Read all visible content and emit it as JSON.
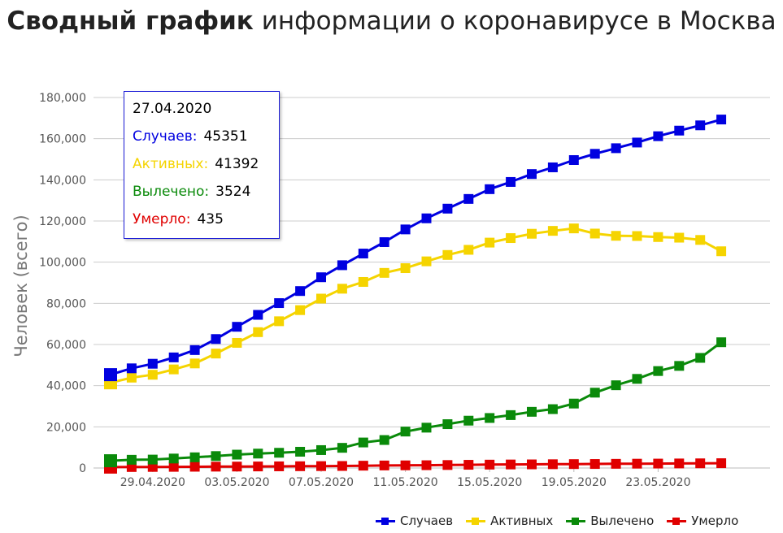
{
  "title": {
    "bold": "Сводный график",
    "rest": "информации о коронавирусе в Москва"
  },
  "chart_data": {
    "type": "line",
    "ylabel": "Человек (всего)",
    "xlabel": "",
    "ylim": [
      0,
      180000
    ],
    "y_ticks": [
      "0",
      "20,000",
      "40,000",
      "60,000",
      "80,000",
      "100,000",
      "120,000",
      "140,000",
      "160,000",
      "180,000"
    ],
    "x": [
      "27.04.2020",
      "28.04.2020",
      "29.04.2020",
      "30.04.2020",
      "01.05.2020",
      "02.05.2020",
      "03.05.2020",
      "04.05.2020",
      "05.05.2020",
      "06.05.2020",
      "07.05.2020",
      "08.05.2020",
      "09.05.2020",
      "10.05.2020",
      "11.05.2020",
      "12.05.2020",
      "13.05.2020",
      "14.05.2020",
      "15.05.2020",
      "16.05.2020",
      "17.05.2020",
      "18.05.2020",
      "19.05.2020",
      "20.05.2020",
      "21.05.2020",
      "22.05.2020",
      "23.05.2020",
      "24.05.2020",
      "25.05.2020",
      "26.05.2020"
    ],
    "x_tick_labels": [
      "29.04.2020",
      "03.05.2020",
      "07.05.2020",
      "11.05.2020",
      "15.05.2020",
      "19.05.2020",
      "23.05.2020"
    ],
    "grid": "horizontal",
    "legend_position": "bottom-right",
    "series": [
      {
        "name": "Случаев",
        "color": "#0000e0",
        "values": [
          45351,
          48426,
          50646,
          53739,
          57300,
          62658,
          68606,
          74401,
          80115,
          85973,
          92676,
          98522,
          104189,
          109740,
          115909,
          121301,
          126004,
          130716,
          135464,
          138969,
          142824,
          146062,
          149607,
          152643,
          155369,
          158120,
          161200,
          163913,
          166473,
          169303
        ]
      },
      {
        "name": "Активных",
        "color": "#f5d400",
        "values": [
          41392,
          43900,
          45300,
          47900,
          50800,
          55600,
          60800,
          66000,
          71300,
          76700,
          82300,
          87100,
          90400,
          94800,
          97100,
          100400,
          103500,
          106000,
          109500,
          111700,
          113800,
          115200,
          116400,
          113900,
          112800,
          112700,
          112200,
          111900,
          110800,
          105300
        ]
      },
      {
        "name": "Вылечено",
        "color": "#0a8a0a",
        "values": [
          3524,
          4000,
          4100,
          4600,
          5200,
          5800,
          6500,
          7000,
          7400,
          7900,
          8700,
          9800,
          12400,
          13600,
          17700,
          19600,
          21300,
          23000,
          24300,
          25700,
          27300,
          28600,
          31300,
          36600,
          40200,
          43300,
          47100,
          49600,
          53500,
          61100
        ]
      },
      {
        "name": "Умерло",
        "color": "#e00000",
        "values": [
          435,
          472,
          516,
          555,
          611,
          658,
          700,
          750,
          806,
          866,
          923,
          985,
          1124,
          1232,
          1287,
          1359,
          1451,
          1558,
          1644,
          1718,
          1766,
          1842,
          1902,
          1954,
          2034,
          2097,
          2144,
          2213,
          2275,
          2342
        ]
      }
    ]
  },
  "tooltip": {
    "date": "27.04.2020",
    "rows": [
      {
        "label": "Случаев:",
        "value": "45351",
        "color": "#0000e0"
      },
      {
        "label": "Активных:",
        "value": "41392",
        "color": "#f5d400"
      },
      {
        "label": "Вылечено:",
        "value": "3524",
        "color": "#0a8a0a"
      },
      {
        "label": "Умерло:",
        "value": "435",
        "color": "#e00000"
      }
    ]
  }
}
